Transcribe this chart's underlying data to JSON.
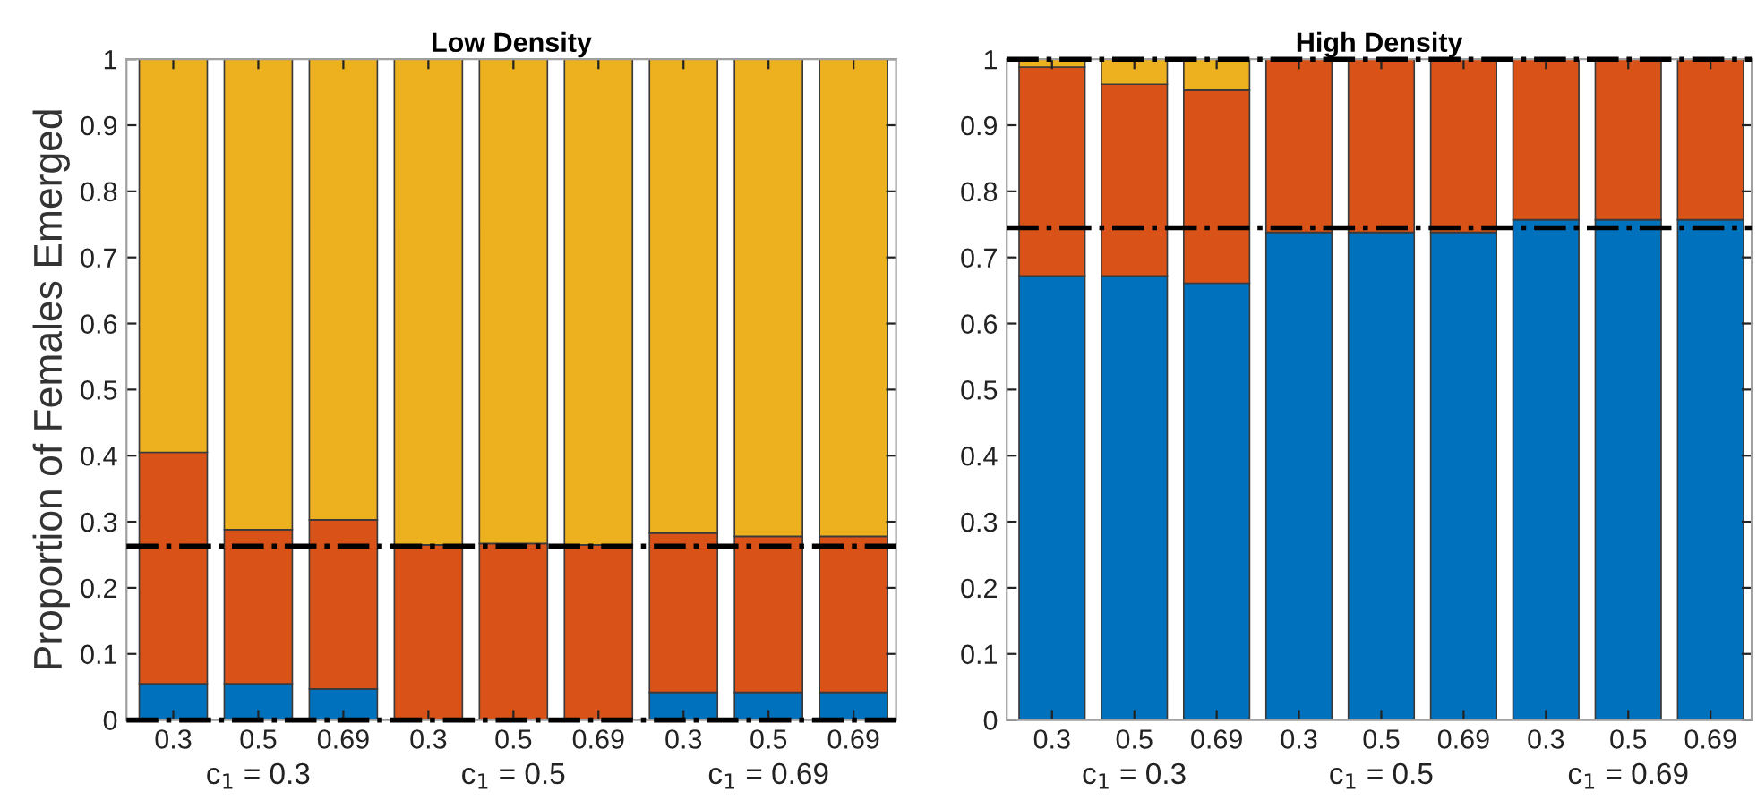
{
  "chart_data": [
    {
      "type": "bar",
      "title": "Low Density",
      "ylabel": "Proportion of Females Emerged",
      "stacked": true,
      "categories": [
        "0.3",
        "0.5",
        "0.69",
        "0.3",
        "0.5",
        "0.69",
        "0.3",
        "0.5",
        "0.69"
      ],
      "series": [
        {
          "color": "#0072bd",
          "values": [
            0.055,
            0.055,
            0.047,
            0,
            0,
            0,
            0.042,
            0.042,
            0.042
          ]
        },
        {
          "color": "#d95319",
          "values": [
            0.35,
            0.233,
            0.256,
            0.265,
            0.267,
            0.265,
            0.241,
            0.236,
            0.236
          ]
        },
        {
          "color": "#edb120",
          "values": [
            0.595,
            0.712,
            0.697,
            0.735,
            0.733,
            0.735,
            0.717,
            0.722,
            0.722
          ]
        }
      ],
      "ylim": [
        0,
        1
      ],
      "yticks": [
        0,
        0.1,
        0.2,
        0.3,
        0.4,
        0.5,
        0.6,
        0.7,
        0.8,
        0.9,
        1
      ],
      "ref_lines": [
        {
          "axis": "y",
          "value": 0.263,
          "color": "#000000",
          "line_style": "dashed"
        },
        {
          "axis": "y",
          "value": 0,
          "color": "#000000",
          "line_style": "dashed"
        }
      ],
      "annotations": [
        "c$_{1}$ = 0.3",
        "c$_{1}$ = 0.5",
        "c$_{1}$ = 0.69"
      ]
    },
    {
      "type": "bar",
      "title": "High Density",
      "stacked": true,
      "categories": [
        "0.3",
        "0.5",
        "0.69",
        "0.3",
        "0.5",
        "0.69",
        "0.3",
        "0.5",
        "0.69"
      ],
      "series": [
        {
          "color": "#0072bd",
          "values": [
            0.672,
            0.672,
            0.661,
            0.738,
            0.738,
            0.738,
            0.757,
            0.757,
            0.757
          ]
        },
        {
          "color": "#d95319",
          "values": [
            0.316,
            0.29,
            0.292,
            0.262,
            0.262,
            0.262,
            0.243,
            0.243,
            0.243
          ]
        },
        {
          "color": "#edb120",
          "values": [
            0.012,
            0.038,
            0.047,
            0,
            0,
            0,
            0,
            0,
            0
          ]
        }
      ],
      "ylim": [
        0,
        1
      ],
      "yticks": [
        0,
        0.1,
        0.2,
        0.3,
        0.4,
        0.5,
        0.6,
        0.7,
        0.8,
        0.9,
        1
      ],
      "ref_lines": [
        {
          "axis": "y",
          "value": 1,
          "color": "#000000",
          "line_style": "dashed"
        },
        {
          "axis": "y",
          "value": 0.745,
          "color": "#000000",
          "line_style": "dashed"
        }
      ],
      "annotations": [
        "c$_{1}$ = 0.3",
        "c$_{1}$ = 0.5",
        "c$_{1}$ = 0.69"
      ]
    }
  ]
}
